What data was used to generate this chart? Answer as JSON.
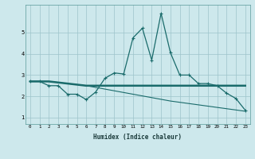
{
  "xlabel": "Humidex (Indice chaleur)",
  "xlim": [
    -0.5,
    23.5
  ],
  "ylim": [
    0.7,
    6.3
  ],
  "yticks": [
    1,
    2,
    3,
    4,
    5
  ],
  "xticks": [
    0,
    1,
    2,
    3,
    4,
    5,
    6,
    7,
    8,
    9,
    10,
    11,
    12,
    13,
    14,
    15,
    16,
    17,
    18,
    19,
    20,
    21,
    22,
    23
  ],
  "background_color": "#cde8ec",
  "grid_color": "#9dc4ca",
  "line_color": "#1a6b6b",
  "line1_x": [
    0,
    1,
    2,
    3,
    4,
    5,
    6,
    7,
    8,
    9,
    10,
    11,
    12,
    13,
    14,
    15,
    16,
    17,
    18,
    19,
    20,
    21,
    22,
    23
  ],
  "line1_y": [
    2.7,
    2.7,
    2.5,
    2.5,
    2.1,
    2.1,
    1.85,
    2.2,
    2.85,
    3.1,
    3.05,
    4.75,
    5.2,
    3.7,
    5.9,
    4.05,
    3.0,
    3.0,
    2.6,
    2.6,
    2.5,
    2.15,
    1.9,
    1.35
  ],
  "line2_x": [
    0,
    1,
    2,
    3,
    4,
    5,
    6,
    7,
    8,
    9,
    10,
    11,
    12,
    13,
    14,
    15,
    16,
    17,
    18,
    19,
    20,
    21,
    22,
    23
  ],
  "line2_y": [
    2.7,
    2.7,
    2.7,
    2.65,
    2.6,
    2.55,
    2.5,
    2.5,
    2.5,
    2.5,
    2.5,
    2.5,
    2.5,
    2.5,
    2.5,
    2.5,
    2.5,
    2.5,
    2.5,
    2.5,
    2.5,
    2.5,
    2.5,
    2.5
  ],
  "line3_x": [
    0,
    1,
    2,
    3,
    4,
    5,
    6,
    7,
    8,
    9,
    10,
    11,
    12,
    13,
    14,
    15,
    16,
    17,
    18,
    19,
    20,
    21,
    22,
    23
  ],
  "line3_y": [
    2.7,
    2.7,
    2.7,
    2.65,
    2.6,
    2.55,
    2.5,
    2.42,
    2.34,
    2.26,
    2.18,
    2.1,
    2.02,
    1.94,
    1.86,
    1.78,
    1.72,
    1.66,
    1.6,
    1.54,
    1.48,
    1.42,
    1.36,
    1.3
  ]
}
